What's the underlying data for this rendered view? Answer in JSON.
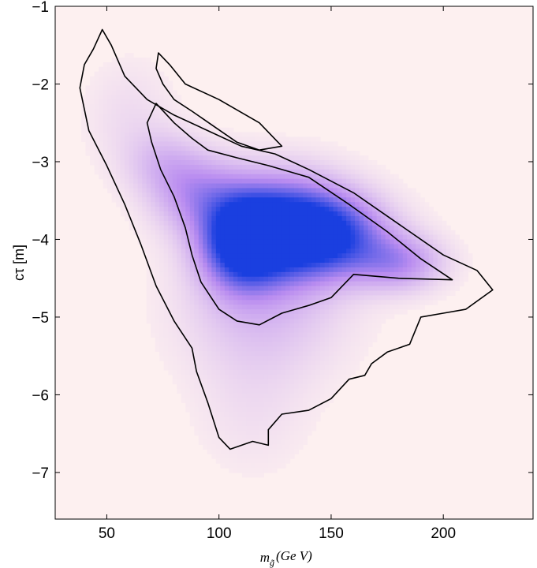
{
  "chart_data": {
    "type": "heatmap",
    "title": "",
    "xlabel": {
      "main": "m",
      "sub": "g̃",
      "rest": "(Ge V)"
    },
    "ylabel": "cτ [m]",
    "xlim": [
      27,
      240
    ],
    "ylim": [
      -7.6,
      -1.0
    ],
    "xticks": [
      50,
      100,
      150,
      200
    ],
    "yticks": [
      -1,
      -2,
      -3,
      -4,
      -5,
      -6,
      -7
    ],
    "x_tick_labels": [
      "50",
      "100",
      "150",
      "200"
    ],
    "y_tick_labels": [
      "−1",
      "−2",
      "−3",
      "−4",
      "−5",
      "−6",
      "−7"
    ],
    "grid": false,
    "colors": {
      "background": "#fdf0f0",
      "low_density": "#b98cf0",
      "high_density": "#1a3fe0",
      "contour": "#000000"
    },
    "density_blobs": [
      {
        "x": 128,
        "y": -3.85,
        "sx": 20,
        "sy": 0.45,
        "weight": 1.0
      },
      {
        "x": 110,
        "y": -4.05,
        "sx": 12,
        "sy": 0.4,
        "weight": 0.85
      },
      {
        "x": 150,
        "y": -3.95,
        "sx": 18,
        "sy": 0.35,
        "weight": 0.7
      },
      {
        "x": 180,
        "y": -4.3,
        "sx": 14,
        "sy": 0.25,
        "weight": 0.45
      },
      {
        "x": 90,
        "y": -3.4,
        "sx": 14,
        "sy": 0.35,
        "weight": 0.4
      },
      {
        "x": 75,
        "y": -3.0,
        "sx": 12,
        "sy": 0.3,
        "weight": 0.2
      },
      {
        "x": 120,
        "y": -4.9,
        "sx": 25,
        "sy": 0.6,
        "weight": 0.25
      },
      {
        "x": 60,
        "y": -2.4,
        "sx": 14,
        "sy": 0.5,
        "weight": 0.1
      },
      {
        "x": 115,
        "y": -6.2,
        "sx": 18,
        "sy": 0.6,
        "weight": 0.08
      }
    ],
    "contours": [
      {
        "name": "outer",
        "points": [
          [
            48,
            -1.3
          ],
          [
            52,
            -1.5
          ],
          [
            58,
            -1.9
          ],
          [
            68,
            -2.2
          ],
          [
            80,
            -2.4
          ],
          [
            95,
            -2.6
          ],
          [
            110,
            -2.8
          ],
          [
            125,
            -2.9
          ],
          [
            140,
            -3.1
          ],
          [
            160,
            -3.4
          ],
          [
            180,
            -3.8
          ],
          [
            200,
            -4.2
          ],
          [
            215,
            -4.4
          ],
          [
            222,
            -4.65
          ],
          [
            210,
            -4.9
          ],
          [
            200,
            -4.95
          ],
          [
            190,
            -5.0
          ],
          [
            185,
            -5.35
          ],
          [
            175,
            -5.45
          ],
          [
            168,
            -5.6
          ],
          [
            165,
            -5.75
          ],
          [
            158,
            -5.8
          ],
          [
            150,
            -6.05
          ],
          [
            140,
            -6.2
          ],
          [
            128,
            -6.25
          ],
          [
            122,
            -6.45
          ],
          [
            122,
            -6.65
          ],
          [
            115,
            -6.6
          ],
          [
            105,
            -6.7
          ],
          [
            100,
            -6.55
          ],
          [
            95,
            -6.1
          ],
          [
            90,
            -5.7
          ],
          [
            88,
            -5.4
          ],
          [
            80,
            -5.05
          ],
          [
            72,
            -4.6
          ],
          [
            65,
            -4.05
          ],
          [
            58,
            -3.55
          ],
          [
            50,
            -3.05
          ],
          [
            42,
            -2.6
          ],
          [
            38,
            -2.05
          ],
          [
            40,
            -1.75
          ],
          [
            44,
            -1.55
          ],
          [
            48,
            -1.3
          ]
        ]
      },
      {
        "name": "inner",
        "points": [
          [
            72,
            -2.25
          ],
          [
            80,
            -2.5
          ],
          [
            88,
            -2.7
          ],
          [
            95,
            -2.85
          ],
          [
            108,
            -2.95
          ],
          [
            122,
            -3.05
          ],
          [
            140,
            -3.2
          ],
          [
            158,
            -3.55
          ],
          [
            175,
            -3.9
          ],
          [
            190,
            -4.25
          ],
          [
            204,
            -4.52
          ],
          [
            180,
            -4.5
          ],
          [
            160,
            -4.45
          ],
          [
            150,
            -4.75
          ],
          [
            140,
            -4.85
          ],
          [
            128,
            -4.95
          ],
          [
            118,
            -5.1
          ],
          [
            108,
            -5.05
          ],
          [
            100,
            -4.9
          ],
          [
            92,
            -4.55
          ],
          [
            88,
            -4.2
          ],
          [
            85,
            -3.85
          ],
          [
            80,
            -3.45
          ],
          [
            74,
            -3.1
          ],
          [
            70,
            -2.75
          ],
          [
            68,
            -2.5
          ],
          [
            72,
            -2.25
          ]
        ]
      },
      {
        "name": "upper-arm",
        "points": [
          [
            73,
            -1.6
          ],
          [
            78,
            -1.75
          ],
          [
            85,
            -2.0
          ],
          [
            100,
            -2.2
          ],
          [
            118,
            -2.5
          ],
          [
            128,
            -2.8
          ],
          [
            118,
            -2.85
          ],
          [
            108,
            -2.75
          ],
          [
            98,
            -2.55
          ],
          [
            88,
            -2.35
          ],
          [
            80,
            -2.2
          ],
          [
            75,
            -2.0
          ],
          [
            72,
            -1.8
          ],
          [
            73,
            -1.6
          ]
        ]
      }
    ]
  }
}
